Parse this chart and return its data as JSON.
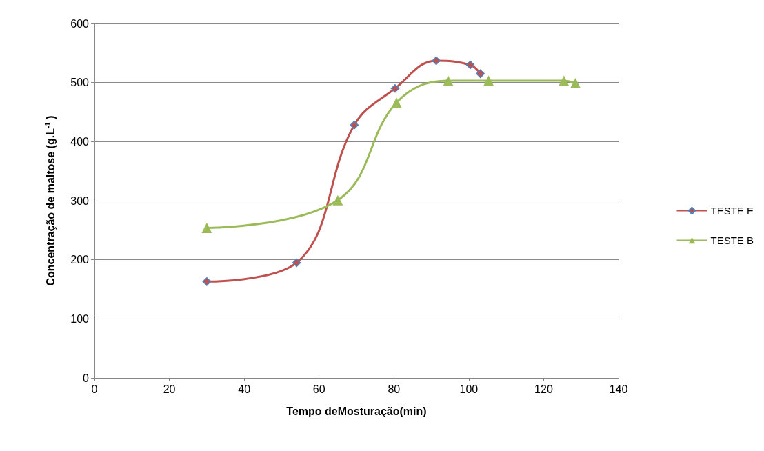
{
  "chart_data": {
    "type": "line",
    "xlabel": "Tempo deMosturação(min)",
    "ylabel": "Concentração de maltose (g.L$^{-1}$ )",
    "xlim": [
      0,
      140
    ],
    "xticks": [
      0,
      20,
      40,
      60,
      80,
      100,
      120,
      140
    ],
    "ylim": [
      0,
      600
    ],
    "yticks": [
      0,
      100,
      200,
      300,
      400,
      500,
      600
    ],
    "grid": "y",
    "legend": "right",
    "series": [
      {
        "name": "TESTE E",
        "color": "#c0504d",
        "marker": "diamond",
        "x": [
          30,
          54,
          69.4,
          80.3,
          91.3,
          100.4,
          103.1
        ],
        "values": [
          163,
          195,
          428,
          490,
          537,
          530,
          515
        ]
      },
      {
        "name": "TESTE B",
        "color": "#9bbb59",
        "marker": "triangle",
        "x": [
          30,
          65,
          80.7,
          94.5,
          105.3,
          125.4,
          128.5
        ],
        "values": [
          254,
          301,
          466,
          503,
          503,
          503,
          499
        ]
      }
    ]
  }
}
